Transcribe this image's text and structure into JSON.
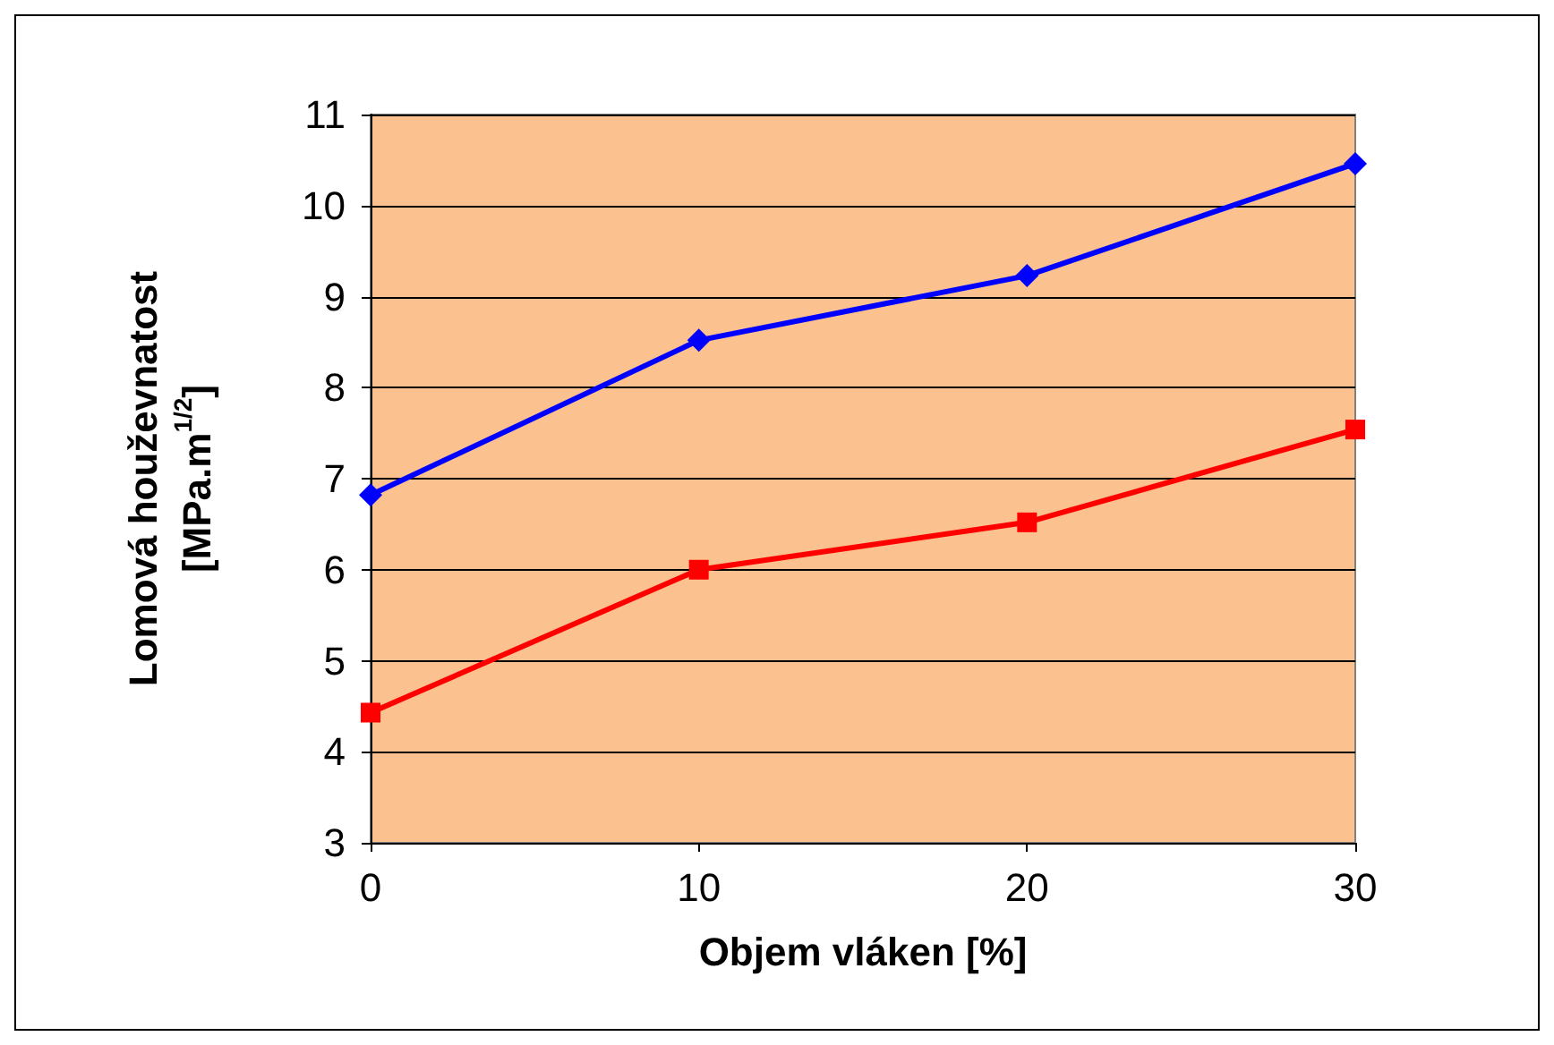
{
  "chart_data": {
    "type": "line",
    "xlabel": "Objem vláken [%]",
    "ylabel": "Lomová houževnatost\n[MPa.m$^{1/2}$]",
    "x": [
      0,
      10,
      20,
      30
    ],
    "series": [
      {
        "color": "#0000ff",
        "marker": "diamond",
        "values": [
          6.82,
          8.52,
          9.23,
          10.46
        ]
      },
      {
        "color": "#ff0000",
        "marker": "square",
        "values": [
          4.43,
          6.0,
          6.52,
          7.54
        ]
      }
    ],
    "xlim": [
      0,
      30
    ],
    "xticks": [
      0,
      10,
      20,
      30
    ],
    "ylim": [
      3,
      11
    ],
    "yticks": [
      3,
      4,
      5,
      6,
      7,
      8,
      9,
      10,
      11
    ],
    "grid": "y",
    "line_style": "solid"
  }
}
